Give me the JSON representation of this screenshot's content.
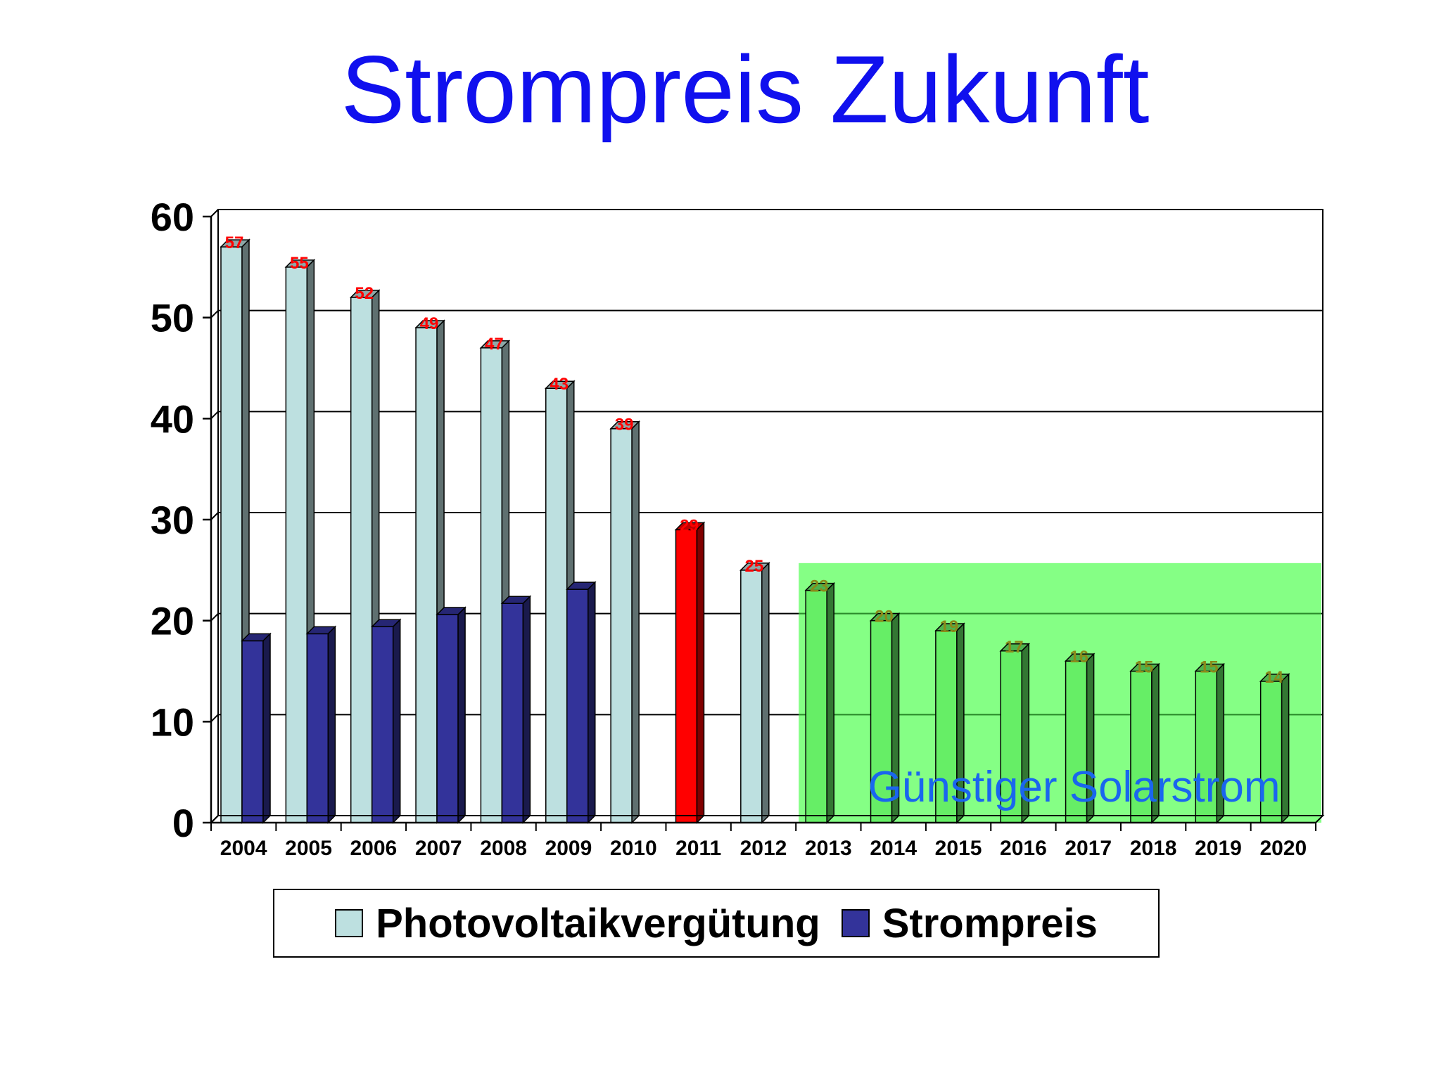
{
  "title": "Strompreis Zukunft",
  "chart_data": {
    "type": "bar",
    "title": "Strompreis Zukunft",
    "xlabel": "",
    "ylabel": "",
    "ylim": [
      0,
      60
    ],
    "yticks": [
      0,
      10,
      20,
      30,
      40,
      50,
      60
    ],
    "grid": true,
    "legend_position": "bottom",
    "categories": [
      "2004",
      "2005",
      "2006",
      "2007",
      "2008",
      "2009",
      "2010",
      "2011",
      "2012",
      "2013",
      "2014",
      "2015",
      "2016",
      "2017",
      "2018",
      "2019",
      "2020"
    ],
    "series": [
      {
        "name": "Photovoltaikvergütung",
        "color": "#bde0e0",
        "values": [
          57,
          55,
          52,
          49,
          47,
          43,
          39,
          29,
          25,
          23,
          20,
          19,
          17,
          16,
          15,
          15,
          14
        ],
        "labels": [
          "57",
          "55",
          "52",
          "49",
          "47",
          "43",
          "39",
          "29",
          "25",
          "23",
          "20",
          "19",
          "17",
          "16",
          "15",
          "15",
          "14"
        ],
        "highlight": {
          "2011": "#ff0000"
        },
        "future_color": "#66ee66"
      },
      {
        "name": "Strompreis",
        "color": "#33339a",
        "values": [
          18,
          18.7,
          19.4,
          20.6,
          21.7,
          23.1,
          null,
          null,
          null,
          null,
          null,
          null,
          null,
          null,
          null,
          null,
          null
        ]
      }
    ],
    "region": {
      "label": "Günstiger Solarstrom",
      "from_category": "2013",
      "to_category": "2020",
      "y_top": 25,
      "color": "#66ff66",
      "label_color": "#1a66ee"
    },
    "label_colors": {
      "past": "#ff0000",
      "future": "#8a8a1a"
    }
  }
}
